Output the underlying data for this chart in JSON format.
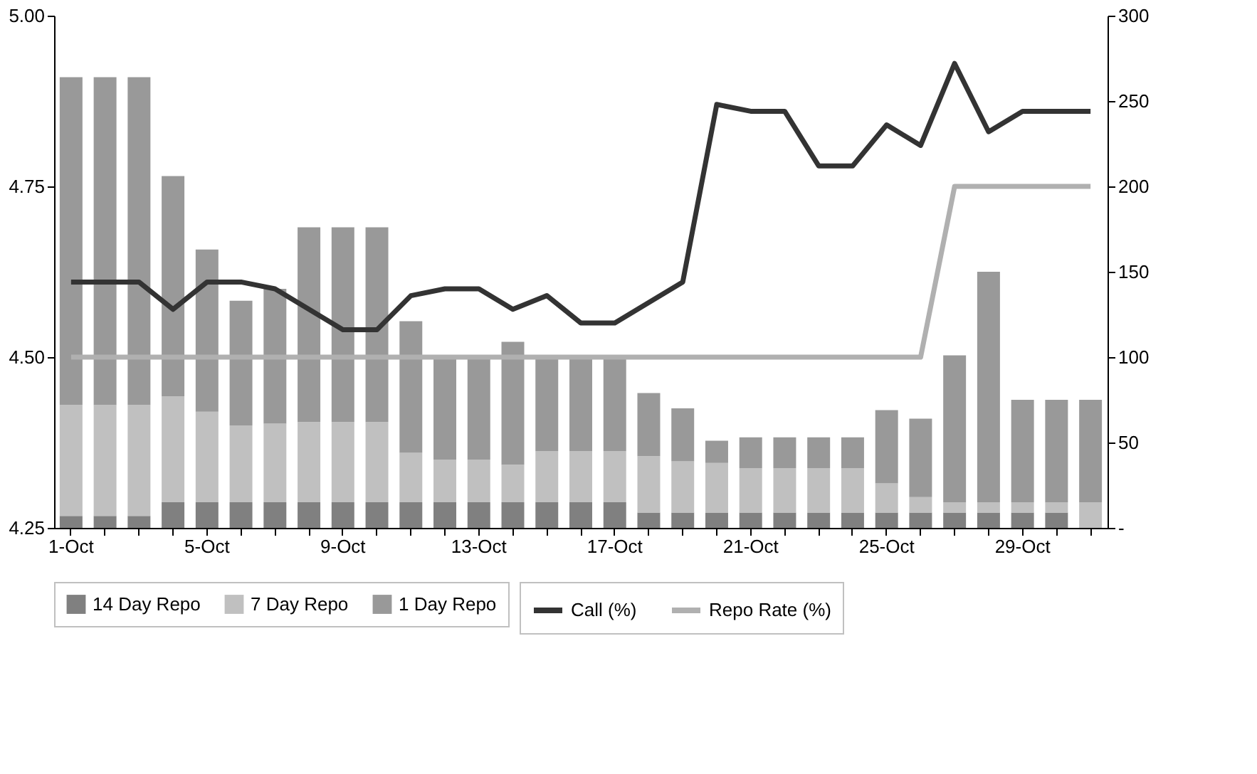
{
  "chart_data": {
    "type": "bar",
    "stacked": true,
    "legend": "bottom",
    "grid": false,
    "categories": [
      "1-Oct",
      null,
      null,
      null,
      "5-Oct",
      null,
      null,
      null,
      "9-Oct",
      null,
      null,
      null,
      "13-Oct",
      null,
      null,
      null,
      "17-Oct",
      null,
      null,
      null,
      "21-Oct",
      null,
      null,
      null,
      "25-Oct",
      null,
      null,
      null,
      "29-Oct",
      null,
      null
    ],
    "ylim": [
      4.25,
      5.0
    ],
    "yticks": [
      4.25,
      {
        "value": 4.5,
        "label": "4.50"
      },
      4.75,
      {
        "value": 5.0,
        "label": "5.00"
      }
    ],
    "y2lim": [
      0,
      300
    ],
    "y2ticks": [
      {
        "value": 0,
        "label": "-"
      },
      50,
      100,
      150,
      200,
      250,
      300
    ],
    "series": [
      {
        "name": "14 Day Repo",
        "axis": "y2",
        "color": "#808080",
        "values": [
          7,
          7,
          7,
          15,
          15,
          15,
          15,
          15,
          15,
          15,
          15,
          15,
          15,
          15,
          15,
          15,
          15,
          9,
          9,
          9,
          9,
          9,
          9,
          9,
          9,
          9,
          9,
          9,
          9,
          9,
          0
        ]
      },
      {
        "name": "7 Day Repo",
        "axis": "y2",
        "color": "#c0c0c0",
        "values": [
          65,
          65,
          65,
          62,
          53,
          45,
          46,
          47,
          47,
          47,
          29,
          25,
          25,
          22,
          30,
          30,
          30,
          33,
          30,
          29,
          26,
          26,
          26,
          26,
          17,
          9,
          6,
          6,
          6,
          6,
          15
        ]
      },
      {
        "name": "1 Day Repo",
        "axis": "y2",
        "color": "#999999",
        "values": [
          192,
          192,
          192,
          129,
          95,
          73,
          79,
          114,
          114,
          114,
          77,
          60,
          60,
          72,
          55,
          55,
          55,
          37,
          31,
          13,
          18,
          18,
          18,
          18,
          43,
          46,
          86,
          135,
          60,
          60,
          60
        ]
      },
      {
        "name": "Call (%)",
        "type": "line",
        "axis": "y",
        "color": "#333333",
        "values": [
          4.61,
          4.61,
          4.61,
          4.57,
          4.61,
          4.61,
          4.6,
          4.57,
          4.54,
          4.54,
          4.59,
          4.6,
          4.6,
          4.57,
          4.59,
          4.55,
          4.55,
          4.58,
          4.61,
          4.87,
          4.86,
          4.86,
          4.78,
          4.78,
          4.84,
          4.81,
          4.93,
          4.83,
          4.86,
          4.86,
          4.86
        ]
      },
      {
        "name": "Repo Rate (%)",
        "type": "line",
        "axis": "y",
        "color": "#b0b0b0",
        "values": [
          4.5,
          4.5,
          4.5,
          4.5,
          4.5,
          4.5,
          4.5,
          4.5,
          4.5,
          4.5,
          4.5,
          4.5,
          4.5,
          4.5,
          4.5,
          4.5,
          4.5,
          4.5,
          4.5,
          4.5,
          4.5,
          4.5,
          4.5,
          4.5,
          4.5,
          4.5,
          4.75,
          4.75,
          4.75,
          4.75,
          4.75
        ]
      }
    ]
  }
}
